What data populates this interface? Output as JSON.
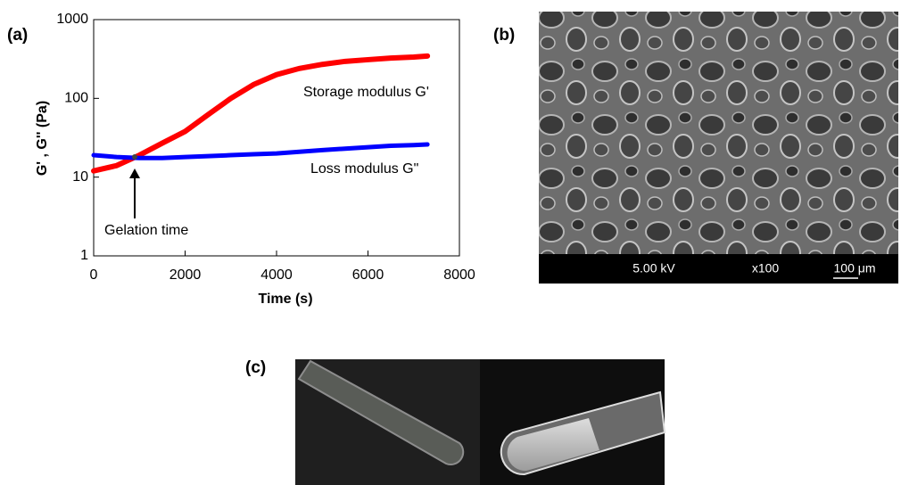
{
  "chart_data": {
    "type": "line",
    "title": "(a)",
    "x_label": "Time (s)",
    "y_label": "G' , G'' (Pa)",
    "x": [
      0,
      500,
      1000,
      1500,
      2000,
      2500,
      3000,
      3500,
      4000,
      4500,
      5000,
      5500,
      6000,
      6500,
      7000,
      7300
    ],
    "series": [
      {
        "name": "Storage modulus G'",
        "color": "#ff0000",
        "values": [
          12,
          14,
          19,
          27,
          38,
          62,
          100,
          150,
          200,
          240,
          270,
          295,
          310,
          325,
          335,
          345
        ]
      },
      {
        "name": "Loss modulus  G\"",
        "color": "#0000ff",
        "values": [
          19,
          18,
          17.5,
          17.5,
          18,
          18.5,
          19,
          19.5,
          20,
          21,
          22,
          23,
          24,
          25,
          25.5,
          26
        ]
      }
    ],
    "annotation": "Gelation time",
    "xlim": [
      0,
      8000
    ],
    "xticks": [
      0,
      2000,
      4000,
      6000,
      8000
    ],
    "ylim": [
      1,
      1000
    ],
    "yticks": [
      1,
      10,
      100,
      1000
    ],
    "yscale": "log"
  },
  "panel_b": {
    "label": "(b)",
    "voltage": "5.00 kV",
    "magnification": "x100",
    "scale_bar": "100 μm"
  },
  "panel_c": {
    "label": "(c)"
  }
}
